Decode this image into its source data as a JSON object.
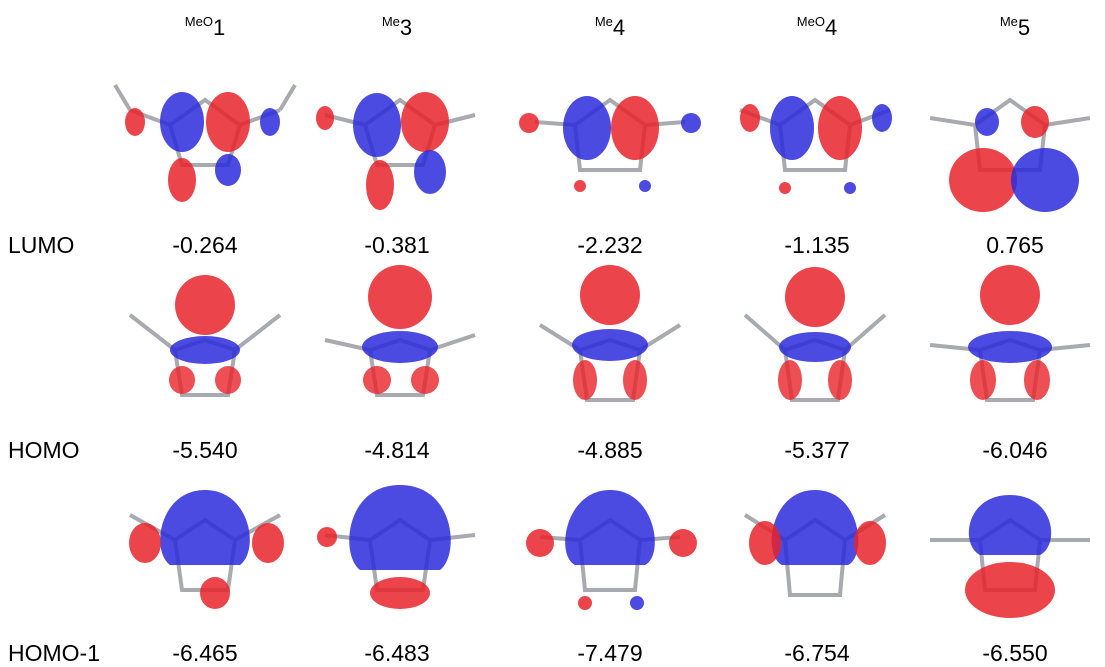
{
  "columns": [
    {
      "sup": "MeO",
      "num": "1"
    },
    {
      "sup": "Me",
      "num": "3"
    },
    {
      "sup": "Me",
      "num": "4"
    },
    {
      "sup": "MeO",
      "num": "4"
    },
    {
      "sup": "Me",
      "num": "5"
    }
  ],
  "rows": [
    {
      "label": "LUMO",
      "values": [
        "-0.264",
        "-0.381",
        "-2.232",
        "-1.135",
        "0.765"
      ]
    },
    {
      "label": "HOMO",
      "values": [
        "-5.540",
        "-4.814",
        "-4.885",
        "-5.377",
        "-6.046"
      ]
    },
    {
      "label": "HOMO-1",
      "values": [
        "-6.465",
        "-6.483",
        "-7.479",
        "-6.754",
        "-6.550"
      ]
    }
  ],
  "colors": {
    "positive_lobe": "#e8232a",
    "negative_lobe": "#2b2bdc",
    "bond": "#a0a0a8"
  }
}
